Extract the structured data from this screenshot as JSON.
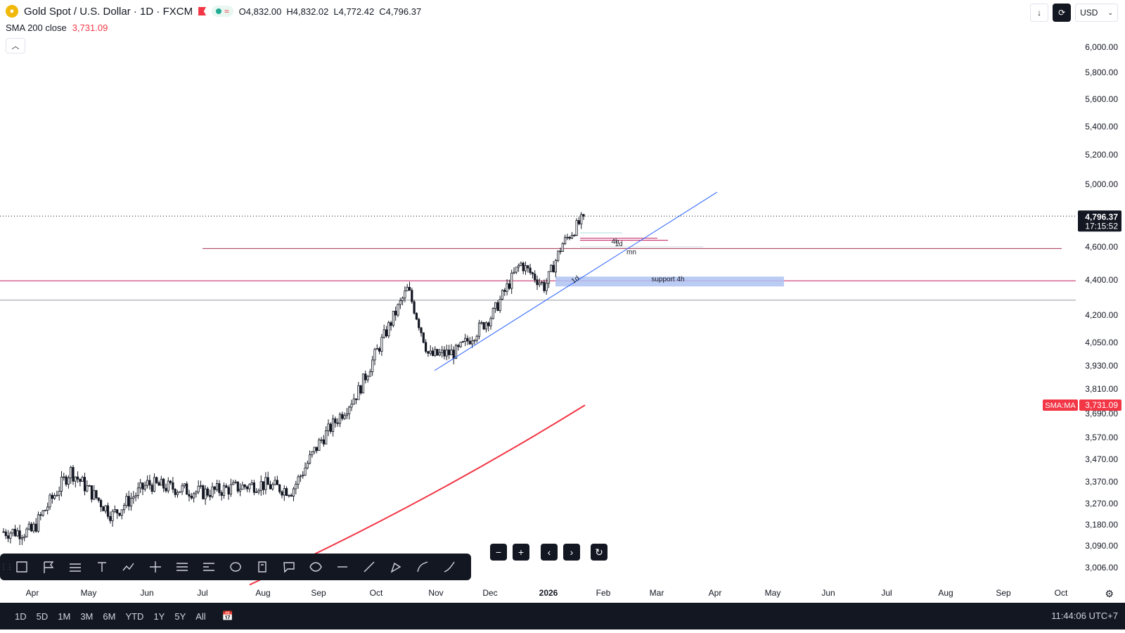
{
  "header": {
    "title": "Gold Spot / U.S. Dollar · 1D · FXCM",
    "open": "O4,832.00",
    "high": "H4,832.02",
    "low": "L4,772.42",
    "close": "C4,796.37",
    "logo_icon": "gold-logo-icon",
    "status_icon": "market-open-icon"
  },
  "indicator": {
    "name": "SMA 200 close",
    "value": "3,731.09",
    "color": "#f23645"
  },
  "top_right": {
    "currency": "USD"
  },
  "price_tag": {
    "price": "4,796.37",
    "countdown": "17:15:52"
  },
  "sma_tag": {
    "label": "SMA:MA",
    "value": "3,731.09"
  },
  "bottom_bar": {
    "ranges": [
      "1D",
      "5D",
      "1M",
      "3M",
      "6M",
      "YTD",
      "1Y",
      "5Y",
      "All"
    ],
    "clock": "11:44:06 UTC+7"
  },
  "drawing_toolbar": {
    "tools": [
      "rectangle-tool-icon",
      "flag-note-icon",
      "parallel-lines-icon",
      "text-tool-icon",
      "path-tool-icon",
      "measure-tool-icon",
      "fib-tool-icon",
      "pattern-tool-icon",
      "ellipse-tool-icon",
      "price-label-icon",
      "callout-tool-icon",
      "curve-shape-icon",
      "horizontal-line-icon",
      "trend-line-icon",
      "pen-tool-icon",
      "arc-tool-icon",
      "brush-tool-icon"
    ]
  },
  "chart_data": {
    "type": "candlestick",
    "symbol": "Gold Spot / U.S. Dollar",
    "interval": "1D",
    "y_tick_labels": [
      "6,000.00",
      "5,800.00",
      "5,600.00",
      "5,400.00",
      "5,200.00",
      "5,000.00",
      "4,600.00",
      "4,400.00",
      "4,200.00",
      "4,050.00",
      "3,930.00",
      "3,810.00",
      "3,690.00",
      "3,570.00",
      "3,470.00",
      "3,370.00",
      "3,270.00",
      "3,180.00",
      "3,090.00",
      "3,006.00"
    ],
    "x_tick_labels": [
      "Apr",
      "May",
      "Jun",
      "Jul",
      "Aug",
      "Sep",
      "Oct",
      "Nov",
      "Dec",
      "2026",
      "Feb",
      "Mar",
      "Apr",
      "May",
      "Jun",
      "Jul",
      "Aug",
      "Sep",
      "Oct"
    ],
    "ylim": [
      3000,
      6200
    ],
    "grid": false,
    "close_path_key_points": [
      {
        "x": "Apr",
        "y": 3150
      },
      {
        "x": "early May",
        "y": 3420
      },
      {
        "x": "mid May",
        "y": 3220
      },
      {
        "x": "Jun",
        "y": 3360
      },
      {
        "x": "Jul",
        "y": 3320
      },
      {
        "x": "Aug",
        "y": 3360
      },
      {
        "x": "late Aug",
        "y": 3330
      },
      {
        "x": "Sep",
        "y": 3550
      },
      {
        "x": "late Sep",
        "y": 3800
      },
      {
        "x": "mid Oct",
        "y": 4350
      },
      {
        "x": "late Oct",
        "y": 3980
      },
      {
        "x": "Nov",
        "y": 4000
      },
      {
        "x": "Dec",
        "y": 4200
      },
      {
        "x": "late Dec",
        "y": 4500
      },
      {
        "x": "early Jan",
        "y": 4360
      },
      {
        "x": "Jan",
        "y": 4620
      },
      {
        "x": "last",
        "y": 4796.37
      }
    ],
    "annotations": [
      "support 4h",
      "4h",
      "1d",
      "mn",
      "1d"
    ],
    "horizontal_levels": [
      {
        "price": 4590,
        "color": "#a33050"
      },
      {
        "price": 4395,
        "color": "#c2185b"
      },
      {
        "price": 4285,
        "color": "#9598a1"
      }
    ],
    "sma_200": {
      "name": "SMA 200 close",
      "last": 3731.09
    }
  }
}
